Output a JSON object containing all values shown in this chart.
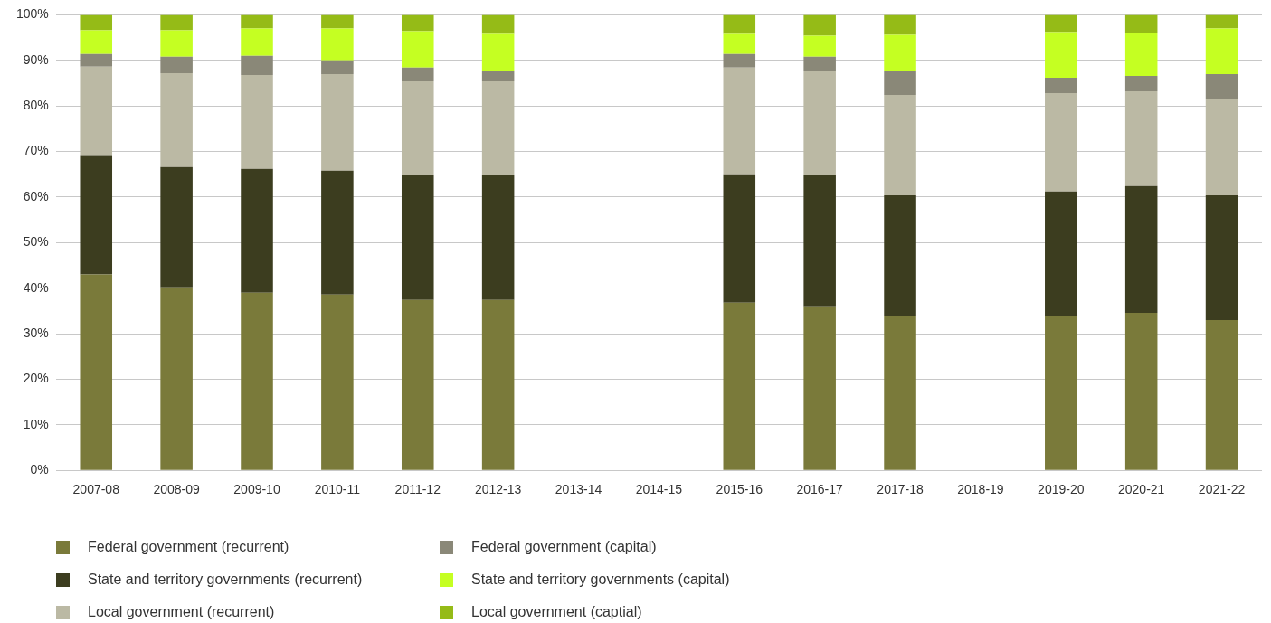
{
  "chart_data": {
    "type": "bar",
    "stacked": true,
    "grid": "y",
    "legend": "bottom",
    "categories": [
      "2007-08",
      "2008-09",
      "2009-10",
      "2010-11",
      "2011-12",
      "2012-13",
      "2013-14",
      "2014-15",
      "2015-16",
      "2016-17",
      "2017-18",
      "2018-19",
      "2019-20",
      "2020-21",
      "2021-22"
    ],
    "ylim": [
      0,
      100
    ],
    "yticks": [
      {
        "value": 0,
        "label": "0%"
      },
      {
        "value": 10,
        "label": "10%"
      },
      {
        "value": 20,
        "label": "20%"
      },
      {
        "value": 30,
        "label": "30%"
      },
      {
        "value": 40,
        "label": "40%"
      },
      {
        "value": 50,
        "label": "50%"
      },
      {
        "value": 60,
        "label": "60%"
      },
      {
        "value": 70,
        "label": "70%"
      },
      {
        "value": 80,
        "label": "80%"
      },
      {
        "value": 90,
        "label": "90%"
      },
      {
        "value": 100,
        "label": "100%"
      }
    ],
    "series": [
      {
        "name": "Federal government (recurrent)",
        "color": "#7a7a3a",
        "values": [
          43,
          40.2,
          39,
          38.6,
          37.4,
          37.4,
          null,
          null,
          36.8,
          36,
          33.8,
          null,
          34,
          34.6,
          33
        ]
      },
      {
        "name": "State and territory governments (recurrent)",
        "color": "#3c3d1f",
        "values": [
          26.2,
          26.4,
          27.2,
          27.2,
          27.4,
          27.4,
          null,
          null,
          28.2,
          28.8,
          26.6,
          null,
          27.2,
          27.8,
          27.4
        ]
      },
      {
        "name": "Local government (recurrent)",
        "color": "#bbb9a4",
        "values": [
          19.4,
          20.6,
          20.6,
          21.2,
          20.6,
          20.6,
          null,
          null,
          23.4,
          22.8,
          22,
          null,
          21.6,
          20.8,
          21
        ]
      },
      {
        "name": "Federal government (capital)",
        "color": "#8a8878",
        "values": [
          2.8,
          3.6,
          4.2,
          3,
          3,
          2.2,
          null,
          null,
          3,
          3.2,
          5.2,
          null,
          3.4,
          3.4,
          5.6
        ]
      },
      {
        "name": "State and territory governments (capital)",
        "color": "#c5ff22",
        "values": [
          5.2,
          5.8,
          6,
          7,
          8,
          8.2,
          null,
          null,
          4.4,
          4.6,
          8,
          null,
          10,
          9.4,
          10
        ]
      },
      {
        "name": "Local government (captial)",
        "color": "#95bb17",
        "values": [
          3.4,
          3.4,
          3,
          3,
          3.6,
          4.2,
          null,
          null,
          4.2,
          4.6,
          4.4,
          null,
          3.8,
          4,
          3
        ]
      }
    ]
  }
}
